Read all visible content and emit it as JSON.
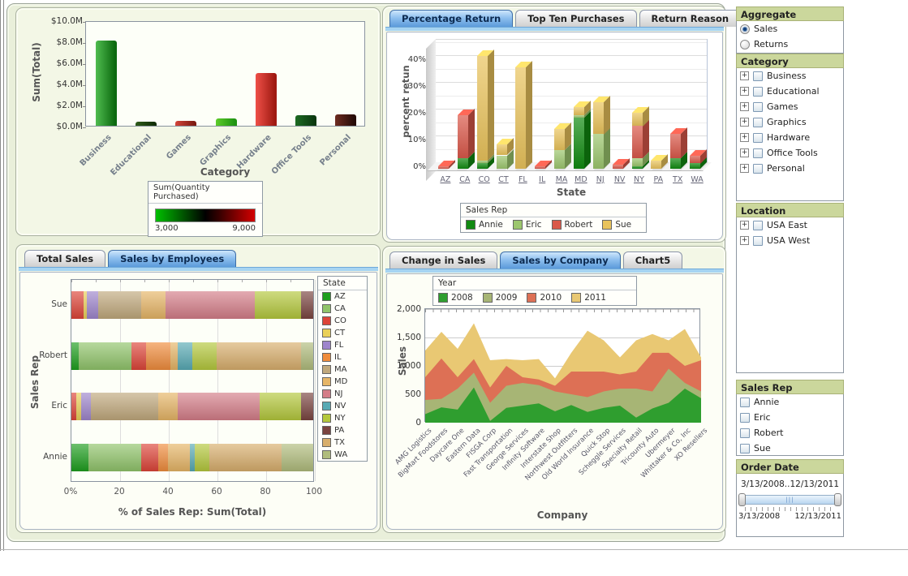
{
  "colors": {
    "container_bg": "#e9efda",
    "panel_bg": "#f3f7e6",
    "header_bg": "#cbd79c",
    "tab_active": "#5b9ada",
    "tab_strip": "#a6d4f2"
  },
  "tabs": {
    "panel2": [
      {
        "label": "Percentage Return",
        "active": true
      },
      {
        "label": "Top Ten Purchases",
        "active": false
      },
      {
        "label": "Return Reason",
        "active": false
      }
    ],
    "panel3": [
      {
        "label": "Total Sales",
        "active": false
      },
      {
        "label": "Sales by Employees",
        "active": true
      }
    ],
    "panel4": [
      {
        "label": "Change in Sales",
        "active": false
      },
      {
        "label": "Sales by Company",
        "active": true
      },
      {
        "label": "Chart5",
        "active": false
      }
    ]
  },
  "sidebar": {
    "aggregate": {
      "title": "Aggregate",
      "options": [
        {
          "label": "Sales",
          "selected": true
        },
        {
          "label": "Returns",
          "selected": false
        }
      ]
    },
    "category": {
      "title": "Category",
      "items": [
        "Business",
        "Educational",
        "Games",
        "Graphics",
        "Hardware",
        "Office Tools",
        "Personal"
      ]
    },
    "location": {
      "title": "Location",
      "items": [
        "USA East",
        "USA West"
      ]
    },
    "sales_rep": {
      "title": "Sales Rep",
      "items": [
        "Annie",
        "Eric",
        "Robert",
        "Sue"
      ]
    },
    "order_date": {
      "title": "Order Date",
      "range_label": "3/13/2008..12/13/2011",
      "start_label": "3/13/2008",
      "end_label": "12/13/2011"
    }
  },
  "chart_data": [
    {
      "id": "category-sales",
      "type": "bar",
      "ylabel": "Sum(Total)",
      "xlabel": "Category",
      "ylim": [
        0,
        10
      ],
      "unit": "$M",
      "y_ticks": [
        "$10.0M",
        "$8.0M",
        "$6.0M",
        "$4.0M",
        "$2.0M",
        "$0.0M"
      ],
      "categories": [
        "Business",
        "Educational",
        "Games",
        "Graphics",
        "Hardware",
        "Office Tools",
        "Personal"
      ],
      "values": [
        8.1,
        0.4,
        0.5,
        0.7,
        5.0,
        1.0,
        1.1
      ],
      "bar_colors": [
        [
          "#4fbc4f",
          "#0d6a10"
        ],
        [
          "#2e5c1a",
          "#112e07"
        ],
        [
          "#d4453a",
          "#7e1c12"
        ],
        [
          "#5ecc2a",
          "#1f9412"
        ],
        [
          "#ef5048",
          "#a01a12"
        ],
        [
          "#1d6b22",
          "#0b3910"
        ],
        [
          "#6e2c20",
          "#260c08"
        ]
      ],
      "color_legend": {
        "title": "Sum(Quantity Purchased)",
        "min_label": "3,000",
        "max_label": "9,000",
        "gradient": [
          "#00c000",
          "#003800",
          "#000000",
          "#3a0000",
          "#d40000"
        ]
      }
    },
    {
      "id": "percentage-return",
      "type": "bar3d-stacked",
      "ylabel": "percent retun",
      "xlabel": "State",
      "ylim": [
        0,
        45
      ],
      "y_ticks": [
        "0%",
        "10%",
        "20%",
        "30%",
        "40%"
      ],
      "legend_title": "Sales Rep",
      "categories": [
        "AZ",
        "CA",
        "CO",
        "CT",
        "FL",
        "IL",
        "MA",
        "MD",
        "NJ",
        "NV",
        "NY",
        "PA",
        "TX",
        "WA"
      ],
      "series": [
        {
          "name": "Annie",
          "color": "#118a11",
          "values": [
            0,
            4,
            2,
            0,
            0,
            0,
            0,
            19,
            0,
            0,
            1,
            0,
            4,
            2
          ]
        },
        {
          "name": "Eric",
          "color": "#9cc66e",
          "values": [
            0,
            0,
            1,
            5,
            0,
            0,
            7,
            1,
            13,
            0,
            3,
            0,
            0,
            0
          ]
        },
        {
          "name": "Robert",
          "color": "#d9584a",
          "values": [
            1,
            16,
            0,
            0,
            0,
            1,
            0,
            0,
            0,
            1.5,
            12,
            0,
            9,
            3
          ]
        },
        {
          "name": "Sue",
          "color": "#e9c35c",
          "values": [
            0,
            0,
            39,
            4,
            38,
            0,
            8,
            3,
            12,
            0,
            5,
            3,
            0,
            0
          ]
        }
      ]
    },
    {
      "id": "sales-by-employees",
      "type": "bar-h-stacked",
      "ylabel": "Sales Rep",
      "xlabel": "% of Sales Rep: Sum(Total)",
      "xlim": [
        0,
        100
      ],
      "x_ticks": [
        "0%",
        "20",
        "40",
        "60",
        "80",
        "100"
      ],
      "legend_title": "State",
      "rows": [
        "Sue",
        "Robert",
        "Eric",
        "Annie"
      ],
      "series": [
        {
          "name": "AZ",
          "color": "#1e9e1e",
          "values": [
            0,
            3,
            0,
            7
          ]
        },
        {
          "name": "CA",
          "color": "#90c46a",
          "values": [
            0,
            22,
            0,
            22
          ]
        },
        {
          "name": "CO",
          "color": "#dd4438",
          "values": [
            5,
            6,
            2,
            7
          ]
        },
        {
          "name": "CT",
          "color": "#ead058",
          "values": [
            1.5,
            0,
            2,
            0
          ]
        },
        {
          "name": "FL",
          "color": "#9e85cc",
          "values": [
            4.5,
            0,
            4,
            0
          ]
        },
        {
          "name": "IL",
          "color": "#f08c3c",
          "values": [
            0,
            10,
            0,
            4
          ]
        },
        {
          "name": "MA",
          "color": "#c0a87c",
          "values": [
            18,
            0,
            28,
            0
          ]
        },
        {
          "name": "MD",
          "color": "#e6b566",
          "values": [
            10,
            3,
            8,
            9
          ]
        },
        {
          "name": "NJ",
          "color": "#d47d88",
          "values": [
            37,
            0,
            34,
            0
          ]
        },
        {
          "name": "NV",
          "color": "#58aab4",
          "values": [
            0,
            6,
            0,
            2
          ]
        },
        {
          "name": "NY",
          "color": "#b4c83c",
          "values": [
            19,
            10,
            17,
            6
          ]
        },
        {
          "name": "PA",
          "color": "#7a4440",
          "values": [
            5,
            0,
            5,
            0
          ]
        },
        {
          "name": "TX",
          "color": "#d8ae6c",
          "values": [
            0,
            35,
            0,
            30
          ]
        },
        {
          "name": "WA",
          "color": "#b0bc7c",
          "values": [
            0,
            5,
            0,
            13
          ]
        }
      ]
    },
    {
      "id": "sales-by-company",
      "type": "area-stacked",
      "ylabel": "Sales",
      "xlabel": "Company",
      "ylim": [
        0,
        2000
      ],
      "y_ticks": [
        "2,000",
        "1,500",
        "1,000",
        "500",
        "0"
      ],
      "legend_title": "Year",
      "categories": [
        "AMG Logistics",
        "BigMart Foodstores",
        "Daycare One",
        "Eastern Data",
        "FISGA Corp",
        "Fast Transportation",
        "George Services",
        "Infinity Software",
        "Interstate Shop",
        "Northwest Outfitters",
        "Old World Insurance",
        "Quick Stop",
        "Scheggle Services",
        "Specialty Retail",
        "Tricounty Auto",
        "Ubermeyer",
        "Whittaker & Co, Inc",
        "XO Resellers"
      ],
      "series": [
        {
          "name": "2008",
          "color": "#2f9e2f",
          "values": [
            150,
            270,
            230,
            620,
            30,
            260,
            300,
            340,
            200,
            310,
            190,
            260,
            300,
            90,
            250,
            350,
            600,
            430
          ]
        },
        {
          "name": "2009",
          "color": "#a7b575",
          "values": [
            250,
            150,
            370,
            260,
            320,
            390,
            400,
            320,
            350,
            190,
            260,
            290,
            300,
            510,
            300,
            600,
            100,
            120
          ]
        },
        {
          "name": "2010",
          "color": "#dd7055",
          "values": [
            400,
            710,
            200,
            240,
            270,
            350,
            100,
            100,
            100,
            400,
            450,
            350,
            250,
            300,
            680,
            280,
            300,
            550
          ]
        },
        {
          "name": "2011",
          "color": "#e9c873",
          "values": [
            470,
            470,
            500,
            630,
            480,
            120,
            300,
            360,
            130,
            330,
            720,
            550,
            300,
            550,
            330,
            220,
            650,
            50
          ]
        }
      ]
    }
  ]
}
